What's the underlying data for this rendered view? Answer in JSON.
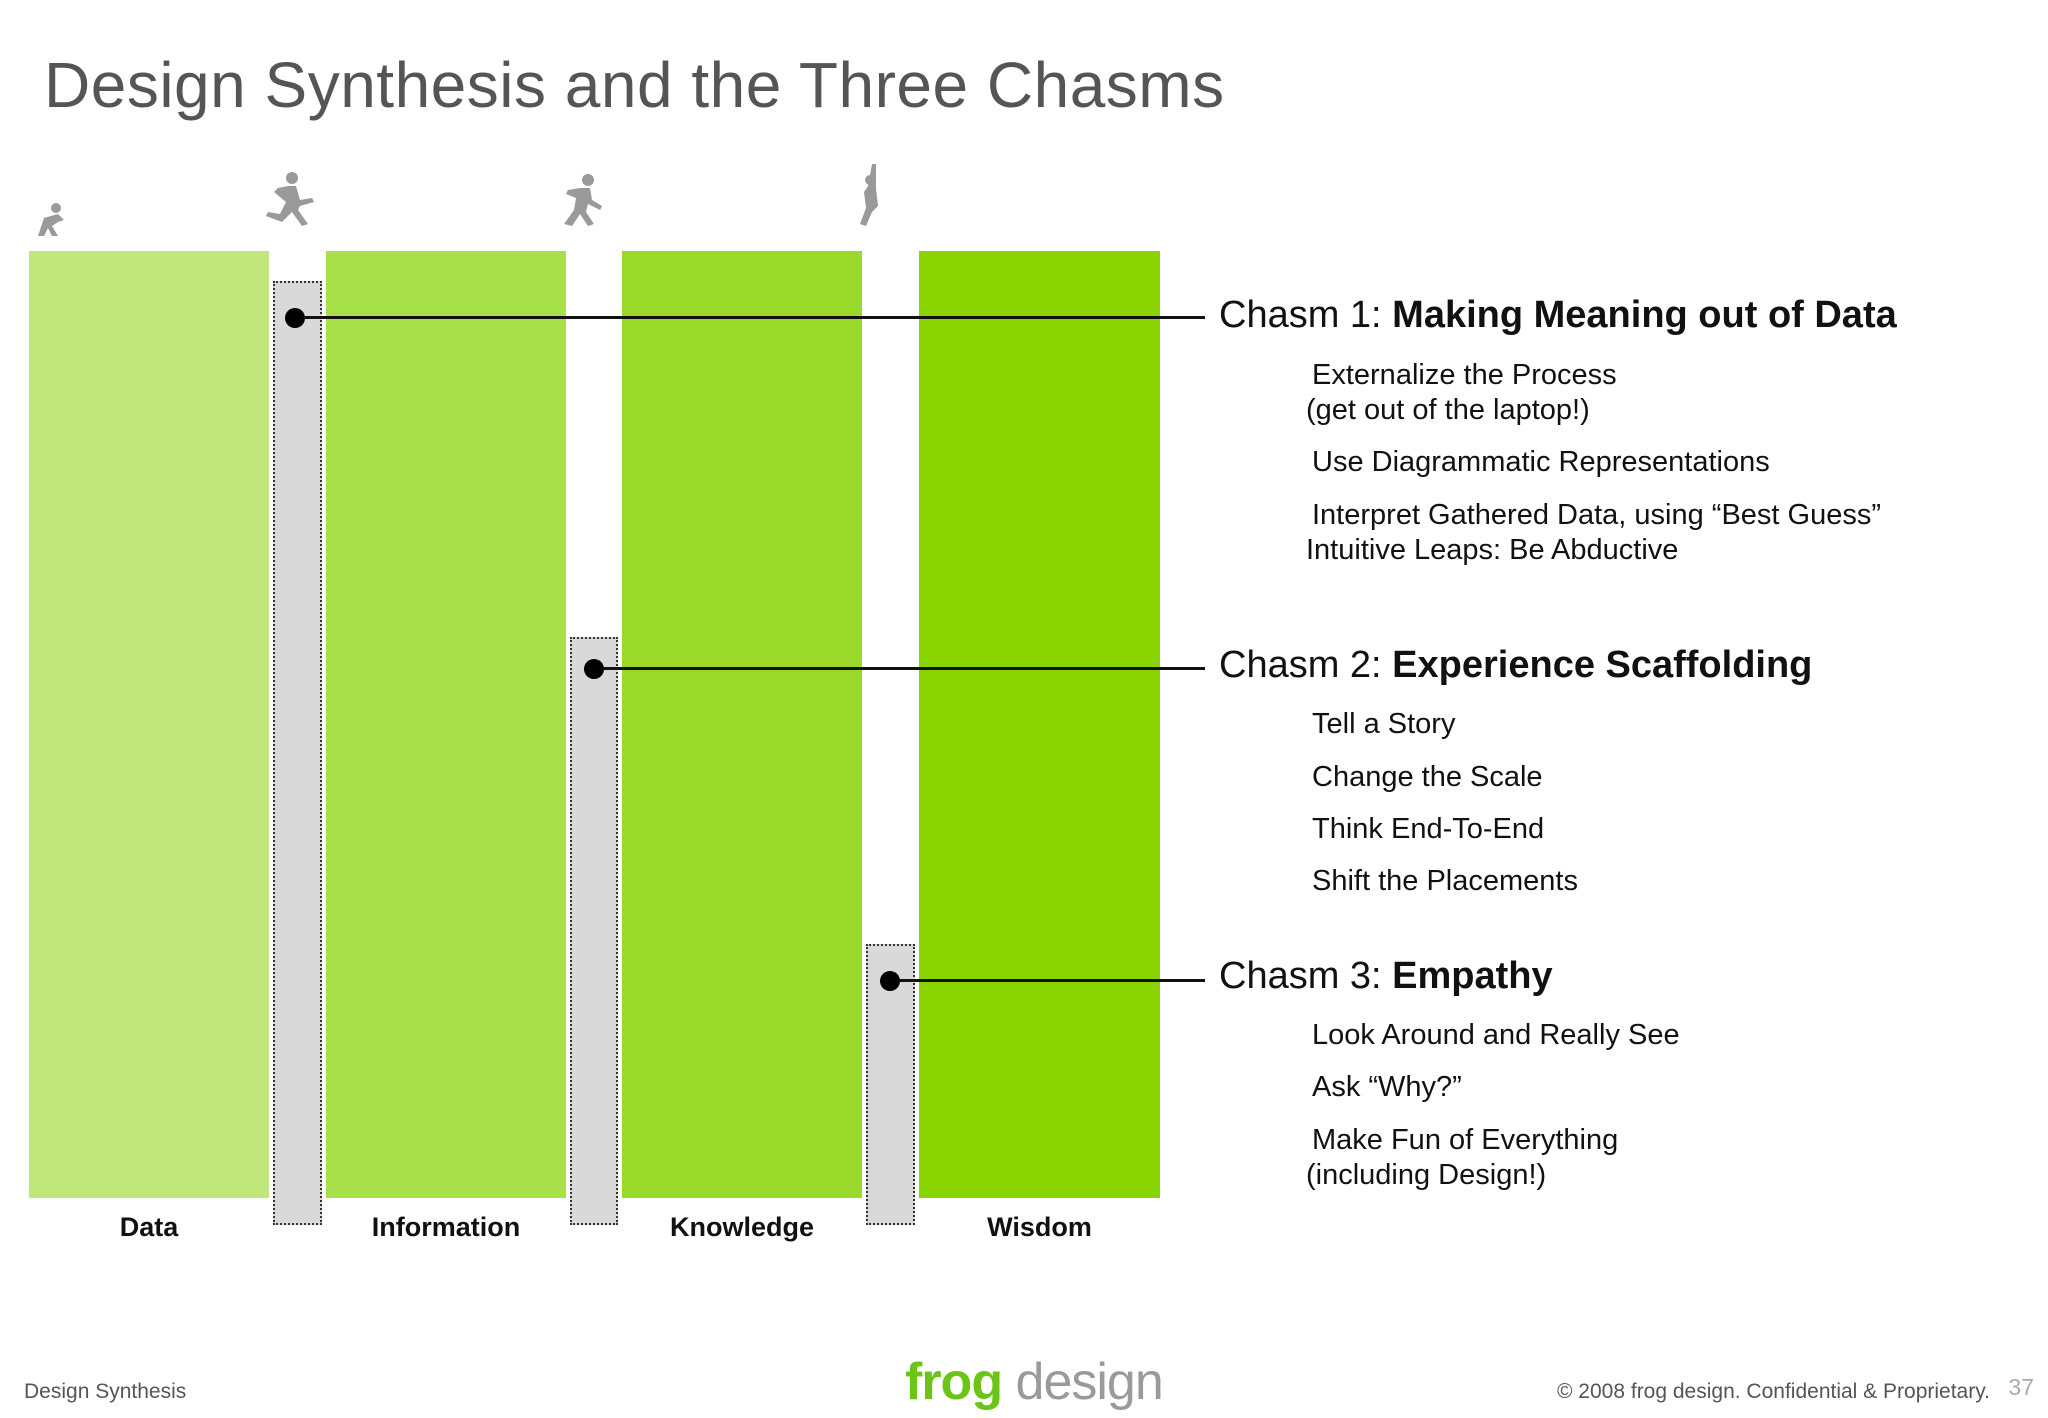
{
  "title": "Design Synthesis and the Three Chasms",
  "columns": [
    {
      "label": "Data",
      "color": "#c0e67c"
    },
    {
      "label": "Information",
      "color": "#a8e04a"
    },
    {
      "label": "Knowledge",
      "color": "#9ad92a"
    },
    {
      "label": "Wisdom",
      "color": "#88d300"
    }
  ],
  "chasms": [
    {
      "prefix": "Chasm 1: ",
      "name": "Making Meaning out of Data",
      "items": [
        {
          "l1": "Externalize the Process",
          "l2": "(get out of the laptop!)"
        },
        {
          "l1": "Use Diagrammatic Representations",
          "l2": ""
        },
        {
          "l1": "Interpret Gathered Data, using “Best Guess”",
          "l2": "Intuitive Leaps: Be Abductive"
        }
      ]
    },
    {
      "prefix": "Chasm 2: ",
      "name": "Experience Scaffolding",
      "items": [
        {
          "l1": "Tell a Story",
          "l2": ""
        },
        {
          "l1": "Change the Scale",
          "l2": ""
        },
        {
          "l1": "Think End-To-End",
          "l2": ""
        },
        {
          "l1": "Shift the Placements",
          "l2": ""
        }
      ]
    },
    {
      "prefix": "Chasm 3: ",
      "name": "Empathy",
      "items": [
        {
          "l1": "Look Around and Really See",
          "l2": ""
        },
        {
          "l1": "Ask “Why?”",
          "l2": ""
        },
        {
          "l1": "Make Fun of Everything",
          "l2": "(including Design!)"
        }
      ]
    }
  ],
  "footer": {
    "left": "Design Synthesis",
    "right": "© 2008 frog design. Confidential & Proprietary.",
    "page": "37",
    "logo_frog": "frog",
    "logo_design": " design"
  }
}
